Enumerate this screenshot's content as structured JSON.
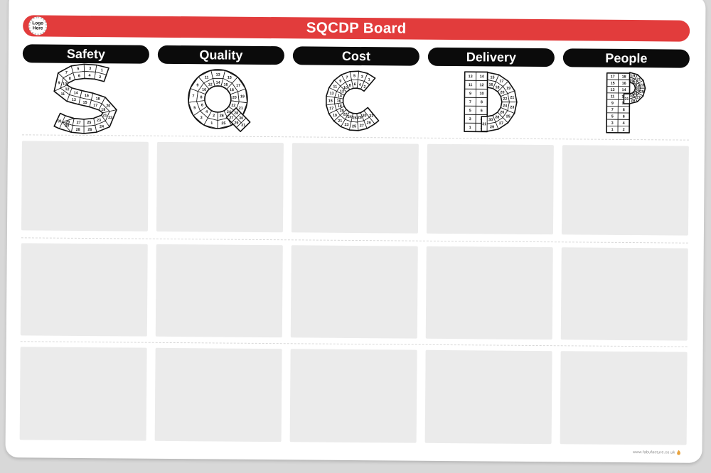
{
  "board": {
    "title": "SQCDP Board",
    "logo": {
      "line1": "Logo",
      "line2": "Here"
    }
  },
  "columns": [
    {
      "label": "Safety",
      "letter": "S"
    },
    {
      "label": "Quality",
      "letter": "Q"
    },
    {
      "label": "Cost",
      "letter": "C"
    },
    {
      "label": "Delivery",
      "letter": "D"
    },
    {
      "label": "People",
      "letter": "P"
    }
  ],
  "calendar": {
    "days": 31
  },
  "note_rows": 3,
  "footer": {
    "website": "www.fabufacture.co.uk"
  },
  "colors": {
    "red": "#e23c3c",
    "black": "#0b0b0b",
    "panel": "#ebebeb",
    "background": "#d8d8d8"
  }
}
